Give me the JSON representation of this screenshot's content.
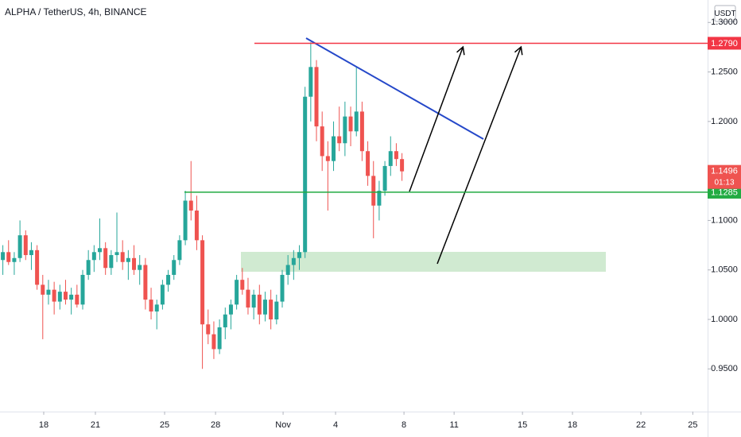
{
  "chart_data": {
    "type": "candlestick",
    "title": "ALPHA / TetherUS, 4h, BINANCE",
    "currency": "USDT",
    "up_color": "#26a69a",
    "down_color": "#ef5350",
    "open": [
      1.06,
      1.068,
      1.058,
      1.062,
      1.085,
      1.065,
      1.07,
      1.035,
      1.025,
      1.03,
      1.018,
      1.028,
      1.02,
      1.025,
      1.015,
      1.045,
      1.06,
      1.068,
      1.072,
      1.052,
      1.065,
      1.068,
      1.058,
      1.062,
      1.05,
      1.055,
      1.02,
      1.008,
      1.015,
      1.035,
      1.045,
      1.06,
      1.08,
      1.12,
      1.11,
      1.08,
      0.995,
      0.985,
      0.97,
      0.992,
      1.005,
      1.015,
      1.04,
      1.03,
      1.012,
      1.025,
      1.005,
      1.02,
      1.0,
      1.018,
      1.045,
      1.055,
      1.062,
      1.068,
      1.225,
      1.255,
      1.195,
      1.165,
      1.16,
      1.185,
      1.178,
      1.205,
      1.19,
      1.21,
      1.17,
      1.145,
      1.115,
      1.13,
      1.155,
      1.17,
      1.162
    ],
    "high": [
      1.075,
      1.08,
      1.068,
      1.1,
      1.09,
      1.078,
      1.075,
      1.045,
      1.04,
      1.038,
      1.035,
      1.04,
      1.032,
      1.035,
      1.05,
      1.07,
      1.075,
      1.102,
      1.078,
      1.07,
      1.108,
      1.08,
      1.07,
      1.075,
      1.065,
      1.062,
      1.032,
      1.02,
      1.04,
      1.05,
      1.065,
      1.085,
      1.13,
      1.16,
      1.125,
      1.085,
      1.01,
      0.998,
      1.0,
      1.012,
      1.02,
      1.045,
      1.052,
      1.042,
      1.03,
      1.035,
      1.028,
      1.03,
      1.025,
      1.05,
      1.065,
      1.07,
      1.075,
      1.235,
      1.28,
      1.262,
      1.21,
      1.18,
      1.2,
      1.215,
      1.22,
      1.215,
      1.255,
      1.22,
      1.18,
      1.16,
      1.14,
      1.16,
      1.185,
      1.178,
      1.168
    ],
    "low": [
      1.045,
      1.055,
      1.045,
      1.058,
      1.06,
      1.05,
      1.03,
      0.98,
      1.015,
      1.005,
      1.01,
      1.015,
      1.005,
      1.012,
      1.01,
      1.04,
      1.048,
      1.06,
      1.045,
      1.045,
      1.058,
      1.05,
      1.04,
      1.045,
      1.035,
      1.01,
      1.0,
      0.99,
      1.01,
      1.028,
      1.04,
      1.055,
      1.075,
      1.1,
      1.07,
      0.95,
      0.975,
      0.96,
      0.965,
      0.98,
      0.99,
      1.01,
      1.025,
      1.005,
      1.0,
      0.995,
      0.998,
      0.99,
      0.995,
      1.012,
      1.035,
      1.04,
      1.05,
      1.062,
      1.2,
      1.18,
      1.15,
      1.11,
      1.15,
      1.17,
      1.165,
      1.175,
      1.185,
      1.16,
      1.135,
      1.082,
      1.1,
      1.125,
      1.145,
      1.155,
      1.14
    ],
    "close": [
      1.068,
      1.058,
      1.062,
      1.085,
      1.065,
      1.07,
      1.035,
      1.025,
      1.03,
      1.018,
      1.028,
      1.02,
      1.025,
      1.015,
      1.045,
      1.06,
      1.068,
      1.072,
      1.052,
      1.065,
      1.068,
      1.058,
      1.062,
      1.05,
      1.055,
      1.02,
      1.008,
      1.015,
      1.035,
      1.045,
      1.06,
      1.08,
      1.12,
      1.11,
      1.08,
      0.995,
      0.985,
      0.97,
      0.992,
      1.005,
      1.015,
      1.04,
      1.03,
      1.012,
      1.025,
      1.005,
      1.02,
      1.0,
      1.018,
      1.045,
      1.055,
      1.062,
      1.068,
      1.225,
      1.255,
      1.195,
      1.165,
      1.16,
      1.185,
      1.178,
      1.205,
      1.19,
      1.21,
      1.17,
      1.145,
      1.115,
      1.13,
      1.155,
      1.17,
      1.162,
      1.1496
    ],
    "last_price_label": "1.1496",
    "countdown": "01:13",
    "levels": [
      {
        "value": 1.279,
        "label": "1.2790",
        "color": "#f23645"
      },
      {
        "value": 1.1285,
        "label": "1.1285",
        "color": "#22ab42"
      }
    ],
    "ylim": [
      0.9069,
      1.3227
    ],
    "yticks": [
      {
        "value": 0.95,
        "label": "0.9500"
      },
      {
        "value": 1.0,
        "label": "1.0000"
      },
      {
        "value": 1.05,
        "label": "1.0500"
      },
      {
        "value": 1.1,
        "label": "1.1000"
      },
      {
        "value": 1.2,
        "label": "1.2000"
      },
      {
        "value": 1.25,
        "label": "1.2500"
      },
      {
        "value": 1.3,
        "label": "1.3000"
      }
    ],
    "xlim": [
      -0.5,
      123.6
    ],
    "xticks": [
      {
        "value": 7.17,
        "label": "18"
      },
      {
        "value": 16.23,
        "label": "21"
      },
      {
        "value": 28.37,
        "label": "25"
      },
      {
        "value": 37.3,
        "label": "28"
      },
      {
        "value": 49.15,
        "label": "Nov"
      },
      {
        "value": 58.35,
        "label": "4"
      },
      {
        "value": 70.35,
        "label": "8"
      },
      {
        "value": 79.14,
        "label": "11"
      },
      {
        "value": 91.13,
        "label": "15"
      },
      {
        "value": 99.9,
        "label": "18"
      },
      {
        "value": 111.9,
        "label": "22"
      },
      {
        "value": 121.0,
        "label": "25"
      }
    ],
    "grid": false
  }
}
